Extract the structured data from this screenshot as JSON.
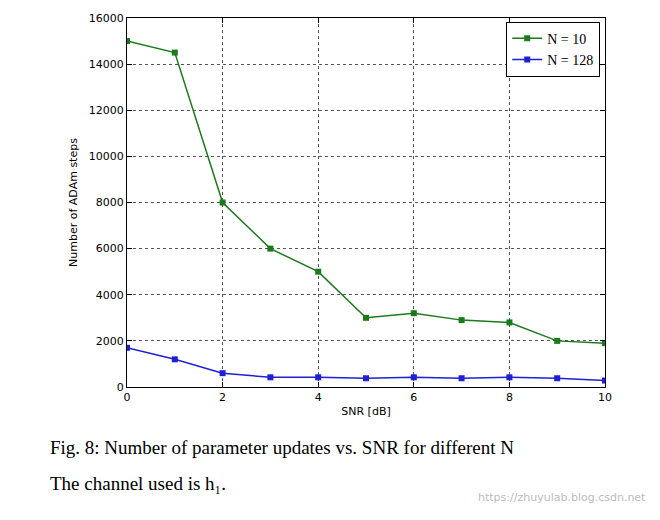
{
  "chart_data": {
    "type": "line",
    "x_label": "SNR [dB]",
    "y_label": "Number of ADAm steps",
    "x": [
      0,
      1,
      2,
      3,
      4,
      5,
      6,
      7,
      8,
      9,
      10
    ],
    "series": [
      {
        "name": "N = 10",
        "color": "#1b7a1b",
        "marker": "square",
        "line_style": "solid",
        "values": [
          15000,
          14500,
          8000,
          6000,
          5000,
          3000,
          3200,
          2900,
          2800,
          2000,
          1900
        ]
      },
      {
        "name": "N = 128",
        "color": "#1f1fd6",
        "marker": "square",
        "line_style": "solid",
        "values": [
          1700,
          1200,
          600,
          420,
          420,
          380,
          420,
          380,
          420,
          380,
          280
        ]
      }
    ],
    "xlim": [
      0,
      10
    ],
    "xticks": [
      0,
      2,
      4,
      6,
      8,
      10
    ],
    "ylim": [
      0,
      16000
    ],
    "yticks": [
      0,
      2000,
      4000,
      6000,
      8000,
      10000,
      12000,
      14000,
      16000
    ],
    "grid": true,
    "legend": "upper right",
    "annotations": [
      "Fig. 8: Number of parameter updates vs. SNR for different N",
      "The channel used is h₁.",
      "https://zhuyulab.blog.csdn.net"
    ]
  }
}
